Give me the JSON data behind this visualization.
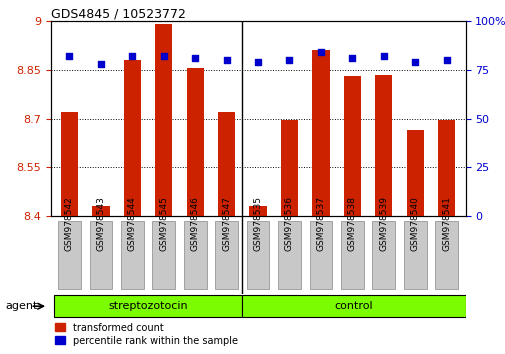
{
  "title": "GDS4845 / 10523772",
  "samples": [
    "GSM978542",
    "GSM978543",
    "GSM978544",
    "GSM978545",
    "GSM978546",
    "GSM978547",
    "GSM978535",
    "GSM978536",
    "GSM978537",
    "GSM978538",
    "GSM978539",
    "GSM978540",
    "GSM978541"
  ],
  "bar_values": [
    8.72,
    8.43,
    8.88,
    8.99,
    8.855,
    8.72,
    8.43,
    8.695,
    8.91,
    8.83,
    8.835,
    8.665,
    8.695
  ],
  "percentile_values": [
    82,
    78,
    82,
    82,
    81,
    80,
    79,
    80,
    84,
    81,
    82,
    79,
    80
  ],
  "bar_color": "#cc2200",
  "percentile_color": "#0000cc",
  "ylim_left": [
    8.4,
    9.0
  ],
  "ylim_right": [
    0,
    100
  ],
  "yticks_left": [
    8.4,
    8.55,
    8.7,
    8.85,
    9.0
  ],
  "ytick_labels_left": [
    "8.4",
    "8.55",
    "8.7",
    "8.85",
    "9"
  ],
  "yticks_right": [
    0,
    25,
    50,
    75,
    100
  ],
  "ytick_labels_right": [
    "0",
    "25",
    "50",
    "75",
    "100%"
  ],
  "groups": [
    {
      "label": "streptozotocin",
      "start": 0,
      "end": 5
    },
    {
      "label": "control",
      "start": 6,
      "end": 12
    }
  ],
  "group_separator": 6,
  "group_color": "#7cfc00",
  "agent_label": "agent",
  "legend_items": [
    {
      "label": "transformed count",
      "color": "#cc2200"
    },
    {
      "label": "percentile rank within the sample",
      "color": "#0000cc"
    }
  ],
  "background_color": "#ffffff",
  "xtick_bg_color": "#c8c8c8"
}
